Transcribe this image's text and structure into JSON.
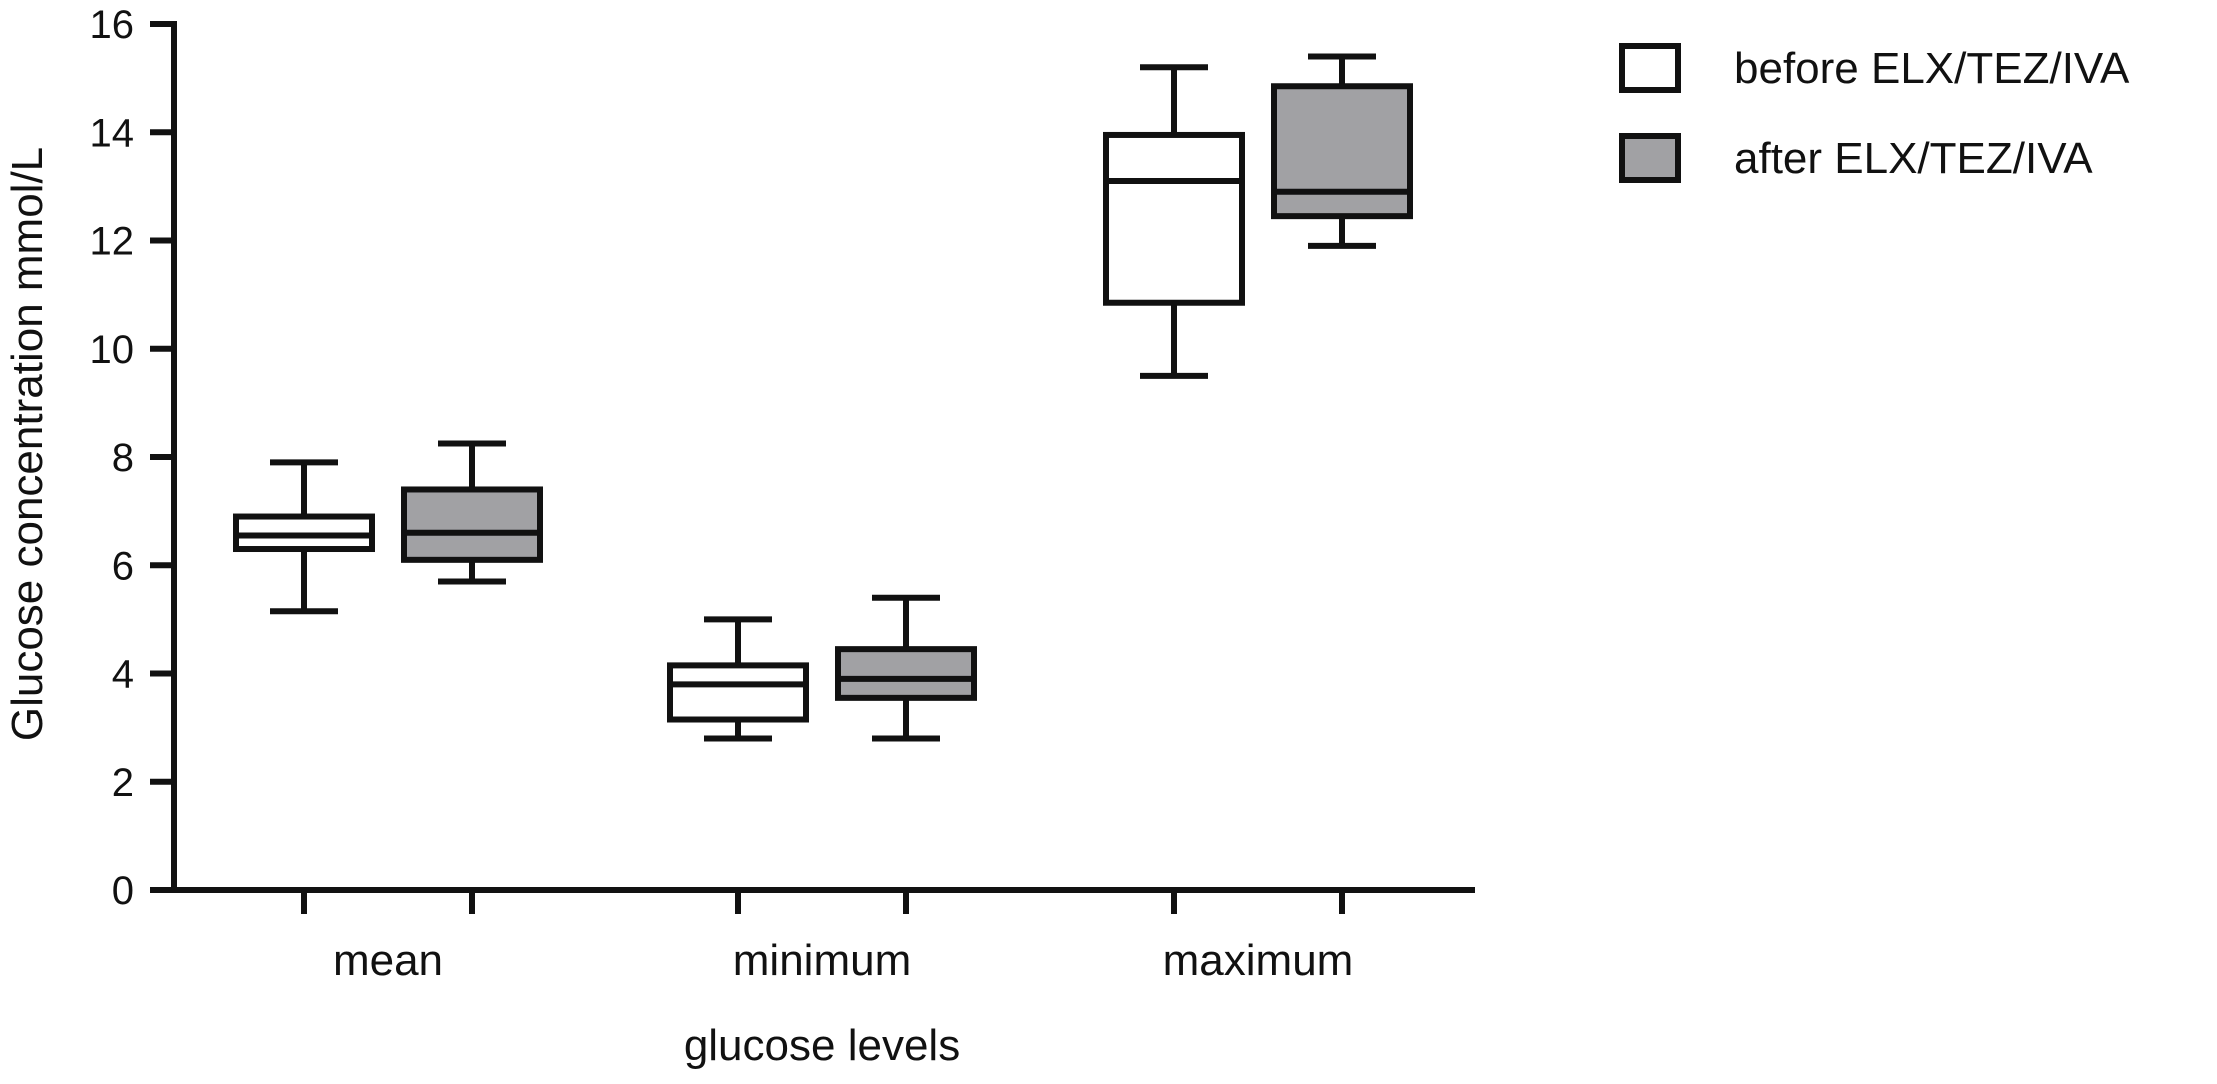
{
  "chart_data": {
    "type": "box",
    "title": "",
    "xlabel": "glucose levels",
    "ylabel": "Glucose concentration mmol/L",
    "ylim": [
      0,
      16
    ],
    "yticks": [
      "0",
      "2",
      "4",
      "6",
      "8",
      "10",
      "12",
      "14",
      "16"
    ],
    "categories": [
      "mean",
      "minimum",
      "maximum"
    ],
    "grid": false,
    "legend_position": "top-right",
    "series": [
      {
        "name": "before ELX/TEZ/IVA",
        "fill": "#ffffff",
        "boxes": [
          {
            "min": 5.15,
            "q1": 6.3,
            "median": 6.55,
            "q3": 6.9,
            "max": 7.9
          },
          {
            "min": 2.8,
            "q1": 3.15,
            "median": 3.8,
            "q3": 4.15,
            "max": 5.0
          },
          {
            "min": 9.5,
            "q1": 10.85,
            "median": 13.1,
            "q3": 13.95,
            "max": 15.2
          }
        ]
      },
      {
        "name": "after ELX/TEZ/IVA",
        "fill": "#a1a1a4",
        "boxes": [
          {
            "min": 5.7,
            "q1": 6.1,
            "median": 6.6,
            "q3": 7.4,
            "max": 8.25
          },
          {
            "min": 2.8,
            "q1": 3.55,
            "median": 3.9,
            "q3": 4.45,
            "max": 5.4
          },
          {
            "min": 11.9,
            "q1": 12.45,
            "median": 12.9,
            "q3": 14.85,
            "max": 15.4
          }
        ]
      }
    ]
  },
  "colors": {
    "stroke": "#111111",
    "before_fill": "#ffffff",
    "after_fill": "#a1a1a4"
  }
}
